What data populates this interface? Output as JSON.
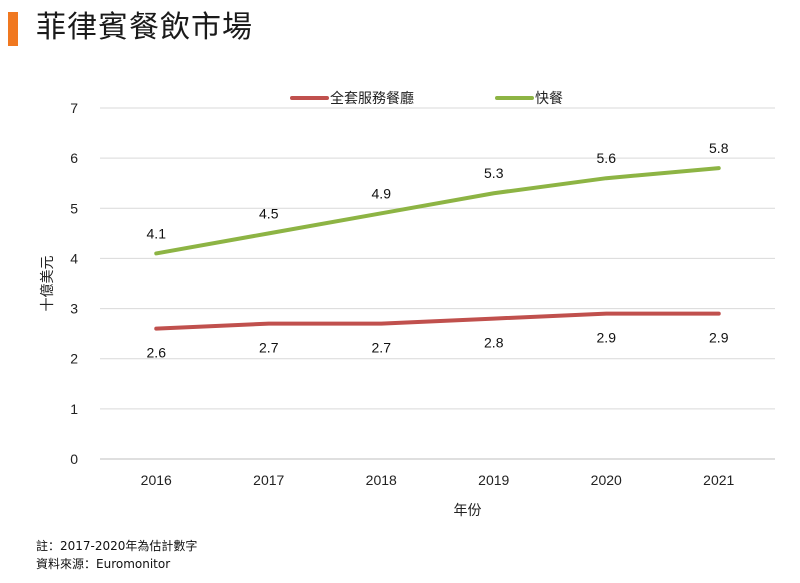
{
  "header": {
    "title": "菲律賓餐飲市場",
    "accent_color": "#F07820"
  },
  "footer": {
    "note": "註：2017-2020年為估計數字",
    "source": "資料來源：Euromonitor"
  },
  "chart_data": {
    "type": "line",
    "title": "",
    "xlabel": "年份",
    "ylabel": "十億美元",
    "categories": [
      "2016",
      "2017",
      "2018",
      "2019",
      "2020",
      "2021"
    ],
    "ylim": [
      0,
      7
    ],
    "yticks": [
      "0",
      "1",
      "2",
      "3",
      "4",
      "5",
      "6",
      "7"
    ],
    "legend_position": "top",
    "grid": true,
    "series": [
      {
        "name": "全套服務餐廳",
        "color": "#C0504D",
        "values": [
          2.6,
          2.7,
          2.7,
          2.8,
          2.9,
          2.9
        ],
        "labels": [
          "2.6",
          "2.7",
          "2.7",
          "2.8",
          "2.9",
          "2.9"
        ],
        "label_position": "below"
      },
      {
        "name": "快餐",
        "color": "#8DB444",
        "values": [
          4.1,
          4.5,
          4.9,
          5.3,
          5.6,
          5.8
        ],
        "labels": [
          "4.1",
          "4.5",
          "4.9",
          "5.3",
          "5.6",
          "5.8"
        ],
        "label_position": "above"
      }
    ]
  }
}
